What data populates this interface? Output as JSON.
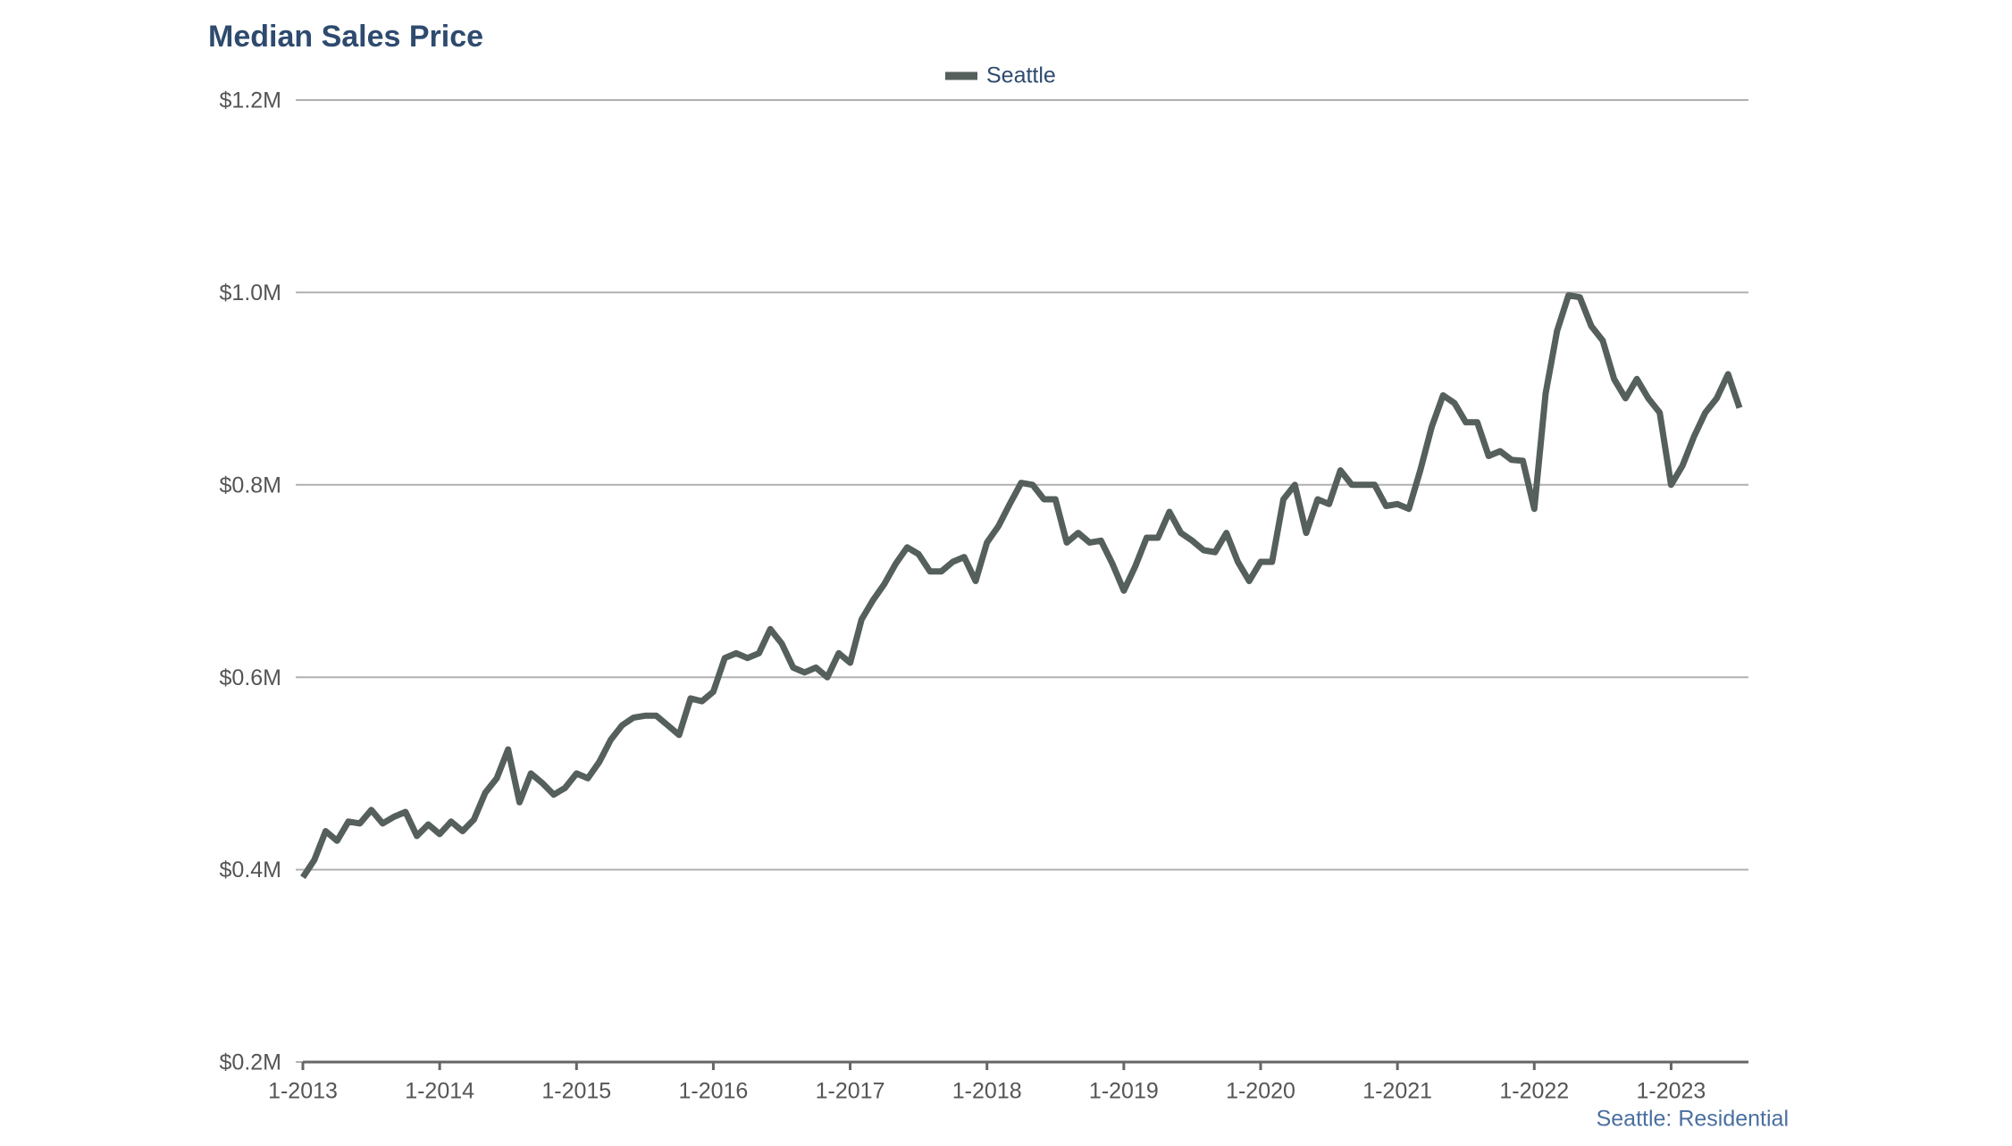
{
  "chart_data": {
    "type": "line",
    "title": "Median Sales Price",
    "source": "Seattle: Residential",
    "categories": [
      "1-2013",
      null,
      null,
      null,
      null,
      null,
      null,
      null,
      null,
      null,
      null,
      null,
      "1-2014",
      null,
      null,
      null,
      null,
      null,
      null,
      null,
      null,
      null,
      null,
      null,
      "1-2015",
      null,
      null,
      null,
      null,
      null,
      null,
      null,
      null,
      null,
      null,
      null,
      "1-2016",
      null,
      null,
      null,
      null,
      null,
      null,
      null,
      null,
      null,
      null,
      null,
      "1-2017",
      null,
      null,
      null,
      null,
      null,
      null,
      null,
      null,
      null,
      null,
      null,
      "1-2018",
      null,
      null,
      null,
      null,
      null,
      null,
      null,
      null,
      null,
      null,
      null,
      "1-2019",
      null,
      null,
      null,
      null,
      null,
      null,
      null,
      null,
      null,
      null,
      null,
      "1-2020",
      null,
      null,
      null,
      null,
      null,
      null,
      null,
      null,
      null,
      null,
      null,
      "1-2021",
      null,
      null,
      null,
      null,
      null,
      null,
      null,
      null,
      null,
      null,
      null,
      "1-2022",
      null,
      null,
      null,
      null,
      null,
      null,
      null,
      null,
      null,
      null,
      null,
      "1-2023",
      null,
      null,
      null,
      null,
      null,
      null
    ],
    "series": [
      {
        "name": "Seattle",
        "color": "#555f5c",
        "values": [
          392000,
          410000,
          440000,
          430000,
          450000,
          448000,
          462000,
          448000,
          455000,
          460000,
          435000,
          447000,
          437000,
          450000,
          440000,
          452000,
          480000,
          495000,
          525000,
          470000,
          500000,
          490000,
          478000,
          485000,
          500000,
          495000,
          512000,
          535000,
          550000,
          558000,
          560000,
          560000,
          550000,
          540000,
          578000,
          575000,
          585000,
          620000,
          625000,
          620000,
          625000,
          650000,
          635000,
          610000,
          605000,
          610000,
          600000,
          625000,
          615000,
          660000,
          680000,
          697000,
          718000,
          735000,
          728000,
          710000,
          710000,
          720000,
          725000,
          700000,
          740000,
          757000,
          780000,
          802000,
          800000,
          785000,
          785000,
          740000,
          750000,
          740000,
          742000,
          718000,
          690000,
          715000,
          745000,
          745000,
          772000,
          750000,
          742000,
          732000,
          730000,
          750000,
          720000,
          700000,
          720000,
          720000,
          785000,
          800000,
          750000,
          785000,
          780000,
          815000,
          800000,
          800000,
          800000,
          778000,
          780000,
          775000,
          815000,
          860000,
          893000,
          885000,
          865000,
          865000,
          830000,
          835000,
          826000,
          825000,
          775000,
          895000,
          960000,
          997000,
          995000,
          965000,
          950000,
          910000,
          890000,
          910000,
          890000,
          875000,
          800000,
          820000,
          850000,
          875000,
          890000,
          915000,
          880000
        ]
      }
    ],
    "ylim": [
      200000,
      1200000
    ],
    "yticks": [
      {
        "value": 200000,
        "label": "$0.2M"
      },
      {
        "value": 400000,
        "label": "$0.4M"
      },
      {
        "value": 600000,
        "label": "$0.6M"
      },
      {
        "value": 800000,
        "label": "$0.8M"
      },
      {
        "value": 1000000,
        "label": "$1.0M"
      },
      {
        "value": 1200000,
        "label": "$1.2M"
      }
    ],
    "grid": true,
    "legend": "top"
  }
}
